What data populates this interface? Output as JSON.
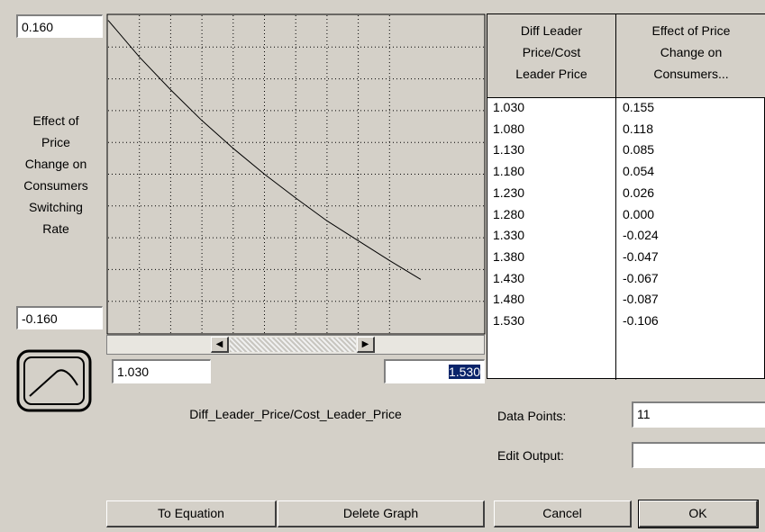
{
  "graph": {
    "y_max": "0.160",
    "y_min": "-0.160",
    "y_label": [
      "Effect of",
      "Price",
      "Change on",
      "Consumers",
      "Switching",
      "Rate"
    ],
    "x_min": "1.030",
    "x_max": "1.530",
    "x_label": "Diff_Leader_Price/Cost_Leader_Price"
  },
  "table": {
    "headers": [
      [
        "Diff Leader",
        "Price/Cost",
        "Leader Price"
      ],
      [
        "Effect of Price",
        "Change on",
        "Consumers..."
      ]
    ],
    "rows": [
      [
        "1.030",
        "0.155"
      ],
      [
        "1.080",
        "0.118"
      ],
      [
        "1.130",
        "0.085"
      ],
      [
        "1.180",
        "0.054"
      ],
      [
        "1.230",
        "0.026"
      ],
      [
        "1.280",
        "0.000"
      ],
      [
        "1.330",
        "-0.024"
      ],
      [
        "1.380",
        "-0.047"
      ],
      [
        "1.430",
        "-0.067"
      ],
      [
        "1.480",
        "-0.087"
      ],
      [
        "1.530",
        "-0.106"
      ]
    ]
  },
  "fields": {
    "data_points_label": "Data Points:",
    "data_points": "11",
    "edit_output_label": "Edit Output:"
  },
  "buttons": [
    "To Equation",
    "Delete Graph",
    "Cancel",
    "OK"
  ]
}
